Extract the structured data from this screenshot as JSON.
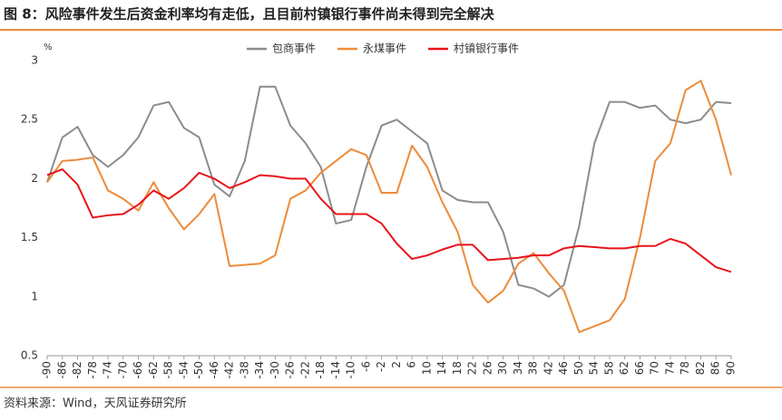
{
  "title": "图 8：风险事件发生后资金利率均有走低，且目前村镇银行事件尚未得到完全解决",
  "source": "资料来源：Wind，天风证券研究所",
  "chart_data": {
    "type": "line",
    "y_unit": "%",
    "x": [
      -90,
      -86,
      -82,
      -78,
      -74,
      -70,
      -66,
      -62,
      -58,
      -54,
      -50,
      -46,
      -42,
      -38,
      -34,
      -30,
      -26,
      -22,
      -18,
      -14,
      -10,
      -6,
      -2,
      2,
      6,
      10,
      14,
      18,
      22,
      26,
      30,
      34,
      38,
      42,
      46,
      50,
      54,
      58,
      62,
      66,
      70,
      74,
      78,
      82,
      86,
      90
    ],
    "series": [
      {
        "name": "包商事件",
        "color": "#8c8c8c",
        "values": [
          1.97,
          2.35,
          2.44,
          2.2,
          2.1,
          2.2,
          2.35,
          2.62,
          2.65,
          2.43,
          2.35,
          1.95,
          1.85,
          2.15,
          2.78,
          2.78,
          2.45,
          2.3,
          2.1,
          1.62,
          1.65,
          2.1,
          2.45,
          2.5,
          2.4,
          2.3,
          1.9,
          1.82,
          1.8,
          1.8,
          1.55,
          1.1,
          1.07,
          1.0,
          1.1,
          1.6,
          2.3,
          2.65,
          2.65,
          2.6,
          2.62,
          2.5,
          2.47,
          2.5,
          2.65,
          2.64
        ]
      },
      {
        "name": "永煤事件",
        "color": "#ed8b3a",
        "values": [
          1.97,
          2.15,
          2.16,
          2.18,
          1.9,
          1.83,
          1.73,
          1.97,
          1.75,
          1.57,
          1.7,
          1.87,
          1.26,
          1.27,
          1.28,
          1.35,
          1.83,
          1.9,
          2.05,
          2.15,
          2.25,
          2.2,
          1.88,
          1.88,
          2.28,
          2.1,
          1.8,
          1.55,
          1.1,
          0.95,
          1.05,
          1.28,
          1.37,
          1.2,
          1.05,
          0.7,
          0.75,
          0.8,
          0.98,
          1.5,
          2.15,
          2.3,
          2.75,
          2.83,
          2.5,
          2.03
        ]
      },
      {
        "name": "村镇银行事件",
        "color": "#e8141b",
        "values": [
          2.03,
          2.08,
          1.95,
          1.67,
          1.69,
          1.7,
          1.78,
          1.9,
          1.83,
          1.92,
          2.05,
          2.0,
          1.92,
          1.97,
          2.03,
          2.02,
          2.0,
          2.0,
          1.83,
          1.7,
          1.7,
          1.7,
          1.62,
          1.45,
          1.32,
          1.35,
          1.4,
          1.44,
          1.44,
          1.31,
          1.32,
          1.33,
          1.35,
          1.35,
          1.41,
          1.43,
          1.42,
          1.41,
          1.41,
          1.43,
          1.43,
          1.49,
          1.45,
          1.35,
          1.25,
          1.21
        ]
      }
    ],
    "xlim": [
      -90,
      90
    ],
    "ylim": [
      0.5,
      3
    ],
    "xticks": [
      -90,
      -86,
      -82,
      -78,
      -74,
      -70,
      -66,
      -62,
      -58,
      -54,
      -50,
      -46,
      -42,
      -38,
      -34,
      -30,
      -26,
      -22,
      -18,
      -14,
      -10,
      -6,
      -2,
      2,
      6,
      10,
      14,
      18,
      22,
      26,
      30,
      34,
      38,
      42,
      46,
      50,
      54,
      58,
      62,
      66,
      70,
      74,
      78,
      82,
      86,
      90
    ],
    "yticks": [
      0.5,
      1,
      1.5,
      2,
      2.5,
      3
    ]
  }
}
